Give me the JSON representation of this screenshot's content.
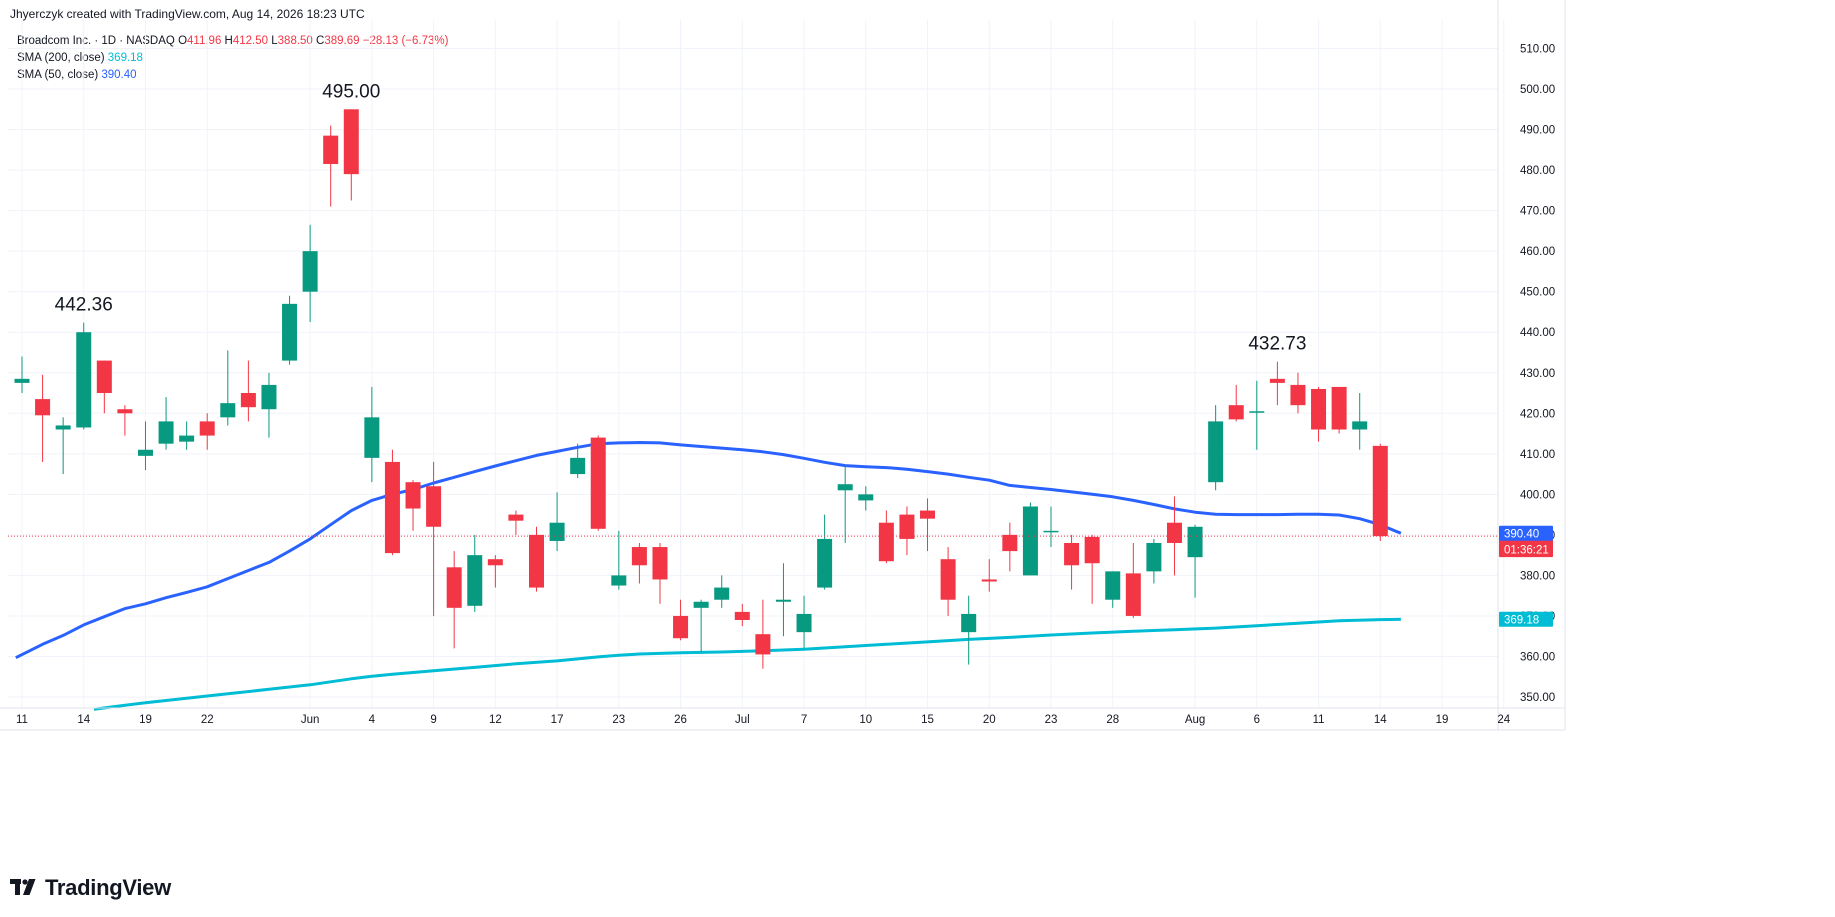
{
  "header": {
    "credit": "Jhyerczyk created with TradingView.com, Aug 14, 2026 18:23 UTC"
  },
  "legend": {
    "symbol": "Broadcom Inc. · 1D · NASDAQ",
    "o_label": "O",
    "o_value": "411.96",
    "h_label": "H",
    "h_value": "412.50",
    "l_label": "L",
    "l_value": "388.50",
    "c_label": "C",
    "c_value": "389.69",
    "change": "−28.13 (−6.73%)",
    "sma200_label": "SMA (200, close)",
    "sma200_value": "369.18",
    "sma50_label": "SMA (50, close)",
    "sma50_value": "390.40"
  },
  "footer": {
    "brand": "TradingView",
    "logo_icon": "tradingview-logo-icon"
  },
  "colors": {
    "up": "#089981",
    "down": "#f23645",
    "sma200": "#00bcd4",
    "sma50": "#2962ff",
    "grid": "#f0f3fa"
  },
  "chart_data": {
    "type": "candlestick",
    "ylim": [
      345,
      513
    ],
    "y_ticks": [
      350,
      360,
      370,
      380,
      390,
      400,
      410,
      420,
      430,
      440,
      450,
      460,
      470,
      480,
      490,
      500,
      510
    ],
    "y_tick_labels": [
      "350.00",
      "360.00",
      "370.00",
      "380.00",
      "390.00",
      "400.00",
      "410.00",
      "420.00",
      "430.00",
      "440.00",
      "450.00",
      "460.00",
      "470.00",
      "480.00",
      "490.00",
      "500.00",
      "510.00"
    ],
    "x_labels": [
      {
        "i": 0,
        "label": "11"
      },
      {
        "i": 3,
        "label": "14"
      },
      {
        "i": 6,
        "label": "19"
      },
      {
        "i": 9,
        "label": "22"
      },
      {
        "i": 14,
        "label": "Jun"
      },
      {
        "i": 17,
        "label": "4"
      },
      {
        "i": 20,
        "label": "9"
      },
      {
        "i": 23,
        "label": "12"
      },
      {
        "i": 26,
        "label": "17"
      },
      {
        "i": 29,
        "label": "23"
      },
      {
        "i": 32,
        "label": "26"
      },
      {
        "i": 35,
        "label": "Jul"
      },
      {
        "i": 38,
        "label": "7"
      },
      {
        "i": 41,
        "label": "10"
      },
      {
        "i": 44,
        "label": "15"
      },
      {
        "i": 47,
        "label": "20"
      },
      {
        "i": 50,
        "label": "23"
      },
      {
        "i": 53,
        "label": "28"
      },
      {
        "i": 57,
        "label": "Aug"
      },
      {
        "i": 60,
        "label": "6"
      },
      {
        "i": 63,
        "label": "11"
      },
      {
        "i": 66,
        "label": "14"
      },
      {
        "i": 69,
        "label": "19"
      },
      {
        "i": 72,
        "label": "24"
      }
    ],
    "annotations": [
      {
        "i": 3,
        "price": 442.36,
        "label": "442.36"
      },
      {
        "i": 16,
        "price": 495.0,
        "label": "495.00"
      },
      {
        "i": 61,
        "price": 432.73,
        "label": "432.73"
      }
    ],
    "candles": [
      {
        "o": 427.5,
        "h": 434,
        "l": 425,
        "c": 428.5
      },
      {
        "o": 423.5,
        "h": 429.5,
        "l": 408,
        "c": 419.5
      },
      {
        "o": 416,
        "h": 419,
        "l": 405,
        "c": 417
      },
      {
        "o": 416.5,
        "h": 442.36,
        "l": 416,
        "c": 440
      },
      {
        "o": 433,
        "h": 433,
        "l": 420,
        "c": 425
      },
      {
        "o": 421,
        "h": 422,
        "l": 414.5,
        "c": 420
      },
      {
        "o": 409.5,
        "h": 418,
        "l": 406,
        "c": 411
      },
      {
        "o": 412.5,
        "h": 424,
        "l": 411,
        "c": 418
      },
      {
        "o": 413,
        "h": 418,
        "l": 411,
        "c": 414.5
      },
      {
        "o": 418,
        "h": 420,
        "l": 411,
        "c": 414.5
      },
      {
        "o": 419,
        "h": 435.5,
        "l": 417,
        "c": 422.5
      },
      {
        "o": 425,
        "h": 433,
        "l": 418,
        "c": 421.5
      },
      {
        "o": 421,
        "h": 430,
        "l": 414,
        "c": 427
      },
      {
        "o": 433,
        "h": 449,
        "l": 432,
        "c": 447
      },
      {
        "o": 450,
        "h": 466.5,
        "l": 442.5,
        "c": 460
      },
      {
        "o": 488.5,
        "h": 491,
        "l": 471,
        "c": 481.5
      },
      {
        "o": 495,
        "h": 495,
        "l": 472.5,
        "c": 479
      },
      {
        "o": 409,
        "h": 426.5,
        "l": 403,
        "c": 419
      },
      {
        "o": 408,
        "h": 411,
        "l": 385,
        "c": 385.5
      },
      {
        "o": 403,
        "h": 403.5,
        "l": 391,
        "c": 396.5
      },
      {
        "o": 402,
        "h": 408,
        "l": 370,
        "c": 392
      },
      {
        "o": 382,
        "h": 386,
        "l": 362,
        "c": 372
      },
      {
        "o": 372.5,
        "h": 390,
        "l": 371,
        "c": 385
      },
      {
        "o": 384,
        "h": 385,
        "l": 377,
        "c": 382.5
      },
      {
        "o": 395,
        "h": 396,
        "l": 390,
        "c": 393.5
      },
      {
        "o": 390,
        "h": 392,
        "l": 376,
        "c": 377
      },
      {
        "o": 388.5,
        "h": 400.5,
        "l": 386,
        "c": 393
      },
      {
        "o": 405,
        "h": 412.5,
        "l": 404,
        "c": 409
      },
      {
        "o": 414,
        "h": 414.5,
        "l": 391,
        "c": 391.5
      },
      {
        "o": 377.5,
        "h": 391,
        "l": 376.5,
        "c": 380
      },
      {
        "o": 387,
        "h": 388,
        "l": 378,
        "c": 382.5
      },
      {
        "o": 387,
        "h": 388,
        "l": 373,
        "c": 379
      },
      {
        "o": 370,
        "h": 374,
        "l": 364,
        "c": 364.5
      },
      {
        "o": 372,
        "h": 374,
        "l": 361,
        "c": 373.5
      },
      {
        "o": 374,
        "h": 380,
        "l": 372,
        "c": 377
      },
      {
        "o": 371,
        "h": 373,
        "l": 367.5,
        "c": 369
      },
      {
        "o": 365.5,
        "h": 374,
        "l": 357,
        "c": 360.5
      },
      {
        "o": 373.5,
        "h": 383,
        "l": 365,
        "c": 374
      },
      {
        "o": 366,
        "h": 375,
        "l": 362,
        "c": 370.5
      },
      {
        "o": 377,
        "h": 395,
        "l": 376.5,
        "c": 389
      },
      {
        "o": 401,
        "h": 407,
        "l": 388,
        "c": 402.5
      },
      {
        "o": 398.5,
        "h": 402,
        "l": 396,
        "c": 400
      },
      {
        "o": 393,
        "h": 396,
        "l": 383,
        "c": 383.5
      },
      {
        "o": 395,
        "h": 397,
        "l": 385,
        "c": 389
      },
      {
        "o": 396,
        "h": 399,
        "l": 386,
        "c": 394
      },
      {
        "o": 384,
        "h": 387,
        "l": 370,
        "c": 374
      },
      {
        "o": 366,
        "h": 375,
        "l": 358,
        "c": 370.5
      },
      {
        "o": 379,
        "h": 384,
        "l": 376,
        "c": 378.5
      },
      {
        "o": 390,
        "h": 393,
        "l": 381,
        "c": 386
      },
      {
        "o": 380,
        "h": 398,
        "l": 380,
        "c": 397
      },
      {
        "o": 391,
        "h": 397,
        "l": 387,
        "c": 391
      },
      {
        "o": 388,
        "h": 390,
        "l": 376.5,
        "c": 382.5
      },
      {
        "o": 389.5,
        "h": 390,
        "l": 373,
        "c": 383
      },
      {
        "o": 374,
        "h": 381,
        "l": 372,
        "c": 381
      },
      {
        "o": 380.5,
        "h": 388,
        "l": 369.5,
        "c": 370
      },
      {
        "o": 381,
        "h": 389,
        "l": 378,
        "c": 388
      },
      {
        "o": 393,
        "h": 399.5,
        "l": 380,
        "c": 388
      },
      {
        "o": 384.5,
        "h": 392.5,
        "l": 374.5,
        "c": 392
      },
      {
        "o": 403,
        "h": 422,
        "l": 401,
        "c": 418
      },
      {
        "o": 422,
        "h": 427,
        "l": 418,
        "c": 418.5
      },
      {
        "o": 420.5,
        "h": 428,
        "l": 411,
        "c": 420.5
      },
      {
        "o": 428.5,
        "h": 432.73,
        "l": 422,
        "c": 427.5
      },
      {
        "o": 427,
        "h": 430,
        "l": 420,
        "c": 422
      },
      {
        "o": 426,
        "h": 426.5,
        "l": 413,
        "c": 416
      },
      {
        "o": 426.5,
        "h": 426.5,
        "l": 415,
        "c": 416
      },
      {
        "o": 416,
        "h": 425,
        "l": 411,
        "c": 418
      },
      {
        "o": 411.96,
        "h": 412.5,
        "l": 388.5,
        "c": 389.69
      }
    ],
    "series": [
      {
        "name": "SMA (50, close)",
        "color": "#2962ff",
        "current": 390.4,
        "points": [
          [
            -0.3,
            359.7
          ],
          [
            1,
            363
          ],
          [
            2,
            365.2
          ],
          [
            3,
            367.8
          ],
          [
            4,
            369.8
          ],
          [
            5,
            371.8
          ],
          [
            6,
            373
          ],
          [
            7,
            374.5
          ],
          [
            8,
            375.8
          ],
          [
            9,
            377.2
          ],
          [
            10,
            379.2
          ],
          [
            11,
            381.2
          ],
          [
            12,
            383.2
          ],
          [
            13,
            386
          ],
          [
            14,
            389
          ],
          [
            15,
            392.5
          ],
          [
            16,
            396
          ],
          [
            17,
            398.5
          ],
          [
            18,
            400
          ],
          [
            19,
            401.2
          ],
          [
            20,
            402.8
          ],
          [
            21,
            404.2
          ],
          [
            22,
            405.6
          ],
          [
            23,
            407
          ],
          [
            24,
            408.3
          ],
          [
            25,
            409.6
          ],
          [
            26,
            410.6
          ],
          [
            27,
            411.6
          ],
          [
            28,
            412.5
          ],
          [
            29,
            412.7
          ],
          [
            30,
            412.8
          ],
          [
            31,
            412.7
          ],
          [
            32,
            412.2
          ],
          [
            33,
            411.8
          ],
          [
            34,
            411.4
          ],
          [
            35,
            411
          ],
          [
            36,
            410.5
          ],
          [
            37,
            409.8
          ],
          [
            38,
            408.9
          ],
          [
            39,
            407.9
          ],
          [
            40,
            407.1
          ],
          [
            41,
            406.8
          ],
          [
            42,
            406.6
          ],
          [
            43,
            406.2
          ],
          [
            44,
            405.6
          ],
          [
            45,
            405
          ],
          [
            46,
            404.2
          ],
          [
            47,
            403.5
          ],
          [
            48,
            402.2
          ],
          [
            49,
            401.7
          ],
          [
            50,
            401.2
          ],
          [
            51,
            400.6
          ],
          [
            52,
            400
          ],
          [
            53,
            399.4
          ],
          [
            54,
            398.5
          ],
          [
            55,
            397.5
          ],
          [
            56,
            396.4
          ],
          [
            57,
            395.6
          ],
          [
            58,
            395.1
          ],
          [
            59,
            395
          ],
          [
            60,
            395
          ],
          [
            61,
            395
          ],
          [
            62,
            395.1
          ],
          [
            63,
            395.1
          ],
          [
            64,
            394.9
          ],
          [
            65,
            394
          ],
          [
            66,
            392.5
          ],
          [
            67,
            390.4
          ]
        ]
      },
      {
        "name": "SMA (200, close)",
        "color": "#00bcd4",
        "current": 369.18,
        "points": [
          [
            3.5,
            347
          ],
          [
            6,
            348.6
          ],
          [
            8,
            349.7
          ],
          [
            10,
            350.8
          ],
          [
            12,
            351.9
          ],
          [
            14,
            353
          ],
          [
            16,
            354.5
          ],
          [
            17,
            355.1
          ],
          [
            18,
            355.6
          ],
          [
            20,
            356.5
          ],
          [
            22,
            357.3
          ],
          [
            24,
            358.2
          ],
          [
            26,
            358.9
          ],
          [
            28,
            359.9
          ],
          [
            29,
            360.3
          ],
          [
            30,
            360.6
          ],
          [
            32,
            360.9
          ],
          [
            34,
            361.1
          ],
          [
            36,
            361.4
          ],
          [
            38,
            361.8
          ],
          [
            40,
            362.4
          ],
          [
            42,
            363
          ],
          [
            44,
            363.6
          ],
          [
            46,
            364.2
          ],
          [
            48,
            364.7
          ],
          [
            50,
            365.3
          ],
          [
            52,
            365.8
          ],
          [
            54,
            366.2
          ],
          [
            56,
            366.6
          ],
          [
            58,
            367
          ],
          [
            60,
            367.6
          ],
          [
            62,
            368.2
          ],
          [
            64,
            368.8
          ],
          [
            66,
            369.1
          ],
          [
            67,
            369.18
          ]
        ]
      }
    ]
  },
  "price_labels": {
    "sma50": "390.40",
    "close": "389.69",
    "countdown": "01:36:21",
    "sma200": "369.18"
  }
}
